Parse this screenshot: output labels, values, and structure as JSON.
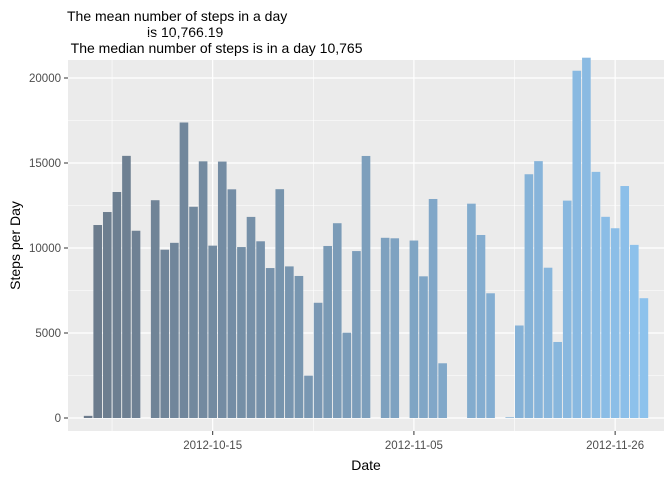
{
  "chart_data": {
    "type": "bar",
    "title_lines": [
      "The mean number of steps in a day",
      "is 10,766.19",
      " The median number of steps is in a day 10,765"
    ],
    "xlabel": "Date",
    "ylabel": "Steps per Day",
    "x_start": "2012-10-01",
    "x": [
      "2012-10-01",
      "2012-10-02",
      "2012-10-03",
      "2012-10-04",
      "2012-10-05",
      "2012-10-06",
      "2012-10-07",
      "2012-10-08",
      "2012-10-09",
      "2012-10-10",
      "2012-10-11",
      "2012-10-12",
      "2012-10-13",
      "2012-10-14",
      "2012-10-15",
      "2012-10-16",
      "2012-10-17",
      "2012-10-18",
      "2012-10-19",
      "2012-10-20",
      "2012-10-21",
      "2012-10-22",
      "2012-10-23",
      "2012-10-24",
      "2012-10-25",
      "2012-10-26",
      "2012-10-27",
      "2012-10-28",
      "2012-10-29",
      "2012-10-30",
      "2012-10-31",
      "2012-11-01",
      "2012-11-02",
      "2012-11-03",
      "2012-11-04",
      "2012-11-05",
      "2012-11-06",
      "2012-11-07",
      "2012-11-08",
      "2012-11-09",
      "2012-11-10",
      "2012-11-11",
      "2012-11-12",
      "2012-11-13",
      "2012-11-14",
      "2012-11-15",
      "2012-11-16",
      "2012-11-17",
      "2012-11-18",
      "2012-11-19",
      "2012-11-20",
      "2012-11-21",
      "2012-11-22",
      "2012-11-23",
      "2012-11-24",
      "2012-11-25",
      "2012-11-26",
      "2012-11-27",
      "2012-11-28",
      "2012-11-29",
      "2012-11-30"
    ],
    "values": [
      null,
      126,
      11352,
      12116,
      13294,
      15420,
      11015,
      null,
      12811,
      9900,
      10304,
      17382,
      12426,
      15098,
      10139,
      15084,
      13452,
      10056,
      11829,
      10395,
      8821,
      13460,
      8918,
      8355,
      2492,
      6778,
      10119,
      11458,
      5018,
      9819,
      15414,
      null,
      10600,
      10571,
      null,
      10439,
      8334,
      12883,
      3219,
      null,
      null,
      12608,
      10765,
      7336,
      null,
      41,
      5441,
      14339,
      15110,
      8841,
      4472,
      12787,
      20427,
      21194,
      14478,
      11834,
      11162,
      13646,
      10183,
      7047,
      null
    ],
    "ylim": [
      0,
      22000
    ],
    "yticks": [
      0,
      5000,
      10000,
      15000,
      20000
    ],
    "xticks": [
      "2012-10-15",
      "2012-11-05",
      "2012-11-26"
    ],
    "color_dark": "#6b7a8a",
    "color_light": "#8ec3ee",
    "panel_bg": "#ebebeb",
    "grid_color": "#ffffff"
  }
}
